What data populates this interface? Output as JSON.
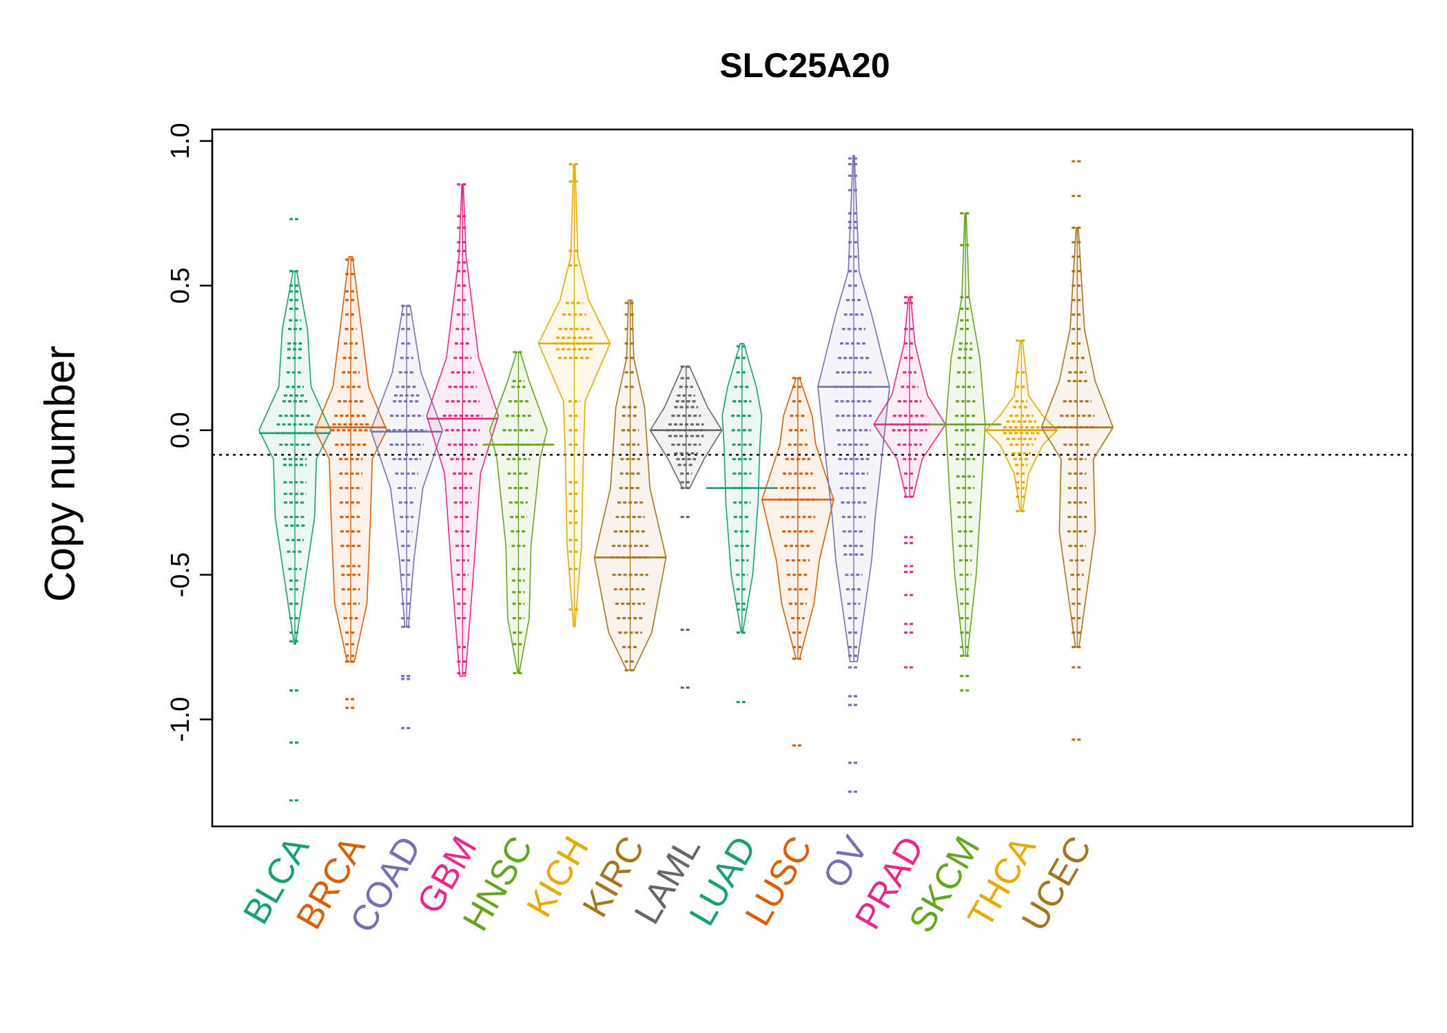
{
  "chart_data": {
    "type": "beanplot",
    "title": "SLC25A20",
    "ylabel": "Copy number",
    "xlabel": "",
    "ylim": [
      -1.37,
      1.04
    ],
    "yticks": [
      -1.0,
      -0.5,
      0.0,
      0.5,
      1.0
    ],
    "ytick_labels": [
      "-1.0",
      "-0.5",
      "0.0",
      "0.5",
      "1.0"
    ],
    "reference_line": -0.085,
    "grid": false,
    "categories": [
      "BLCA",
      "BRCA",
      "COAD",
      "GBM",
      "HNSC",
      "KICH",
      "KIRC",
      "LAML",
      "LUAD",
      "LUSC",
      "OV",
      "PRAD",
      "SKCM",
      "THCA",
      "UCEC"
    ],
    "colors": [
      "#1b9e77",
      "#d95f02",
      "#7570b3",
      "#e7298a",
      "#66a61e",
      "#e6ab02",
      "#a6761d",
      "#666666",
      "#1b9e77",
      "#d95f02",
      "#7570b3",
      "#e7298a",
      "#66a61e",
      "#e6ab02",
      "#a6761d"
    ],
    "series": [
      {
        "name": "BLCA",
        "median": -0.01,
        "density": [
          [
            -0.74,
            0.02
          ],
          [
            -0.55,
            0.25
          ],
          [
            -0.3,
            0.55
          ],
          [
            -0.1,
            0.6
          ],
          [
            0.0,
            1.0
          ],
          [
            0.15,
            0.45
          ],
          [
            0.35,
            0.35
          ],
          [
            0.55,
            0.05
          ]
        ],
        "points": [
          0.73,
          0.55,
          0.5,
          0.48,
          0.45,
          0.42,
          0.38,
          0.35,
          0.3,
          0.28,
          0.25,
          0.2,
          0.15,
          0.12,
          0.1,
          0.05,
          0.02,
          -0.01,
          -0.05,
          -0.1,
          -0.12,
          -0.18,
          -0.22,
          -0.25,
          -0.3,
          -0.33,
          -0.38,
          -0.42,
          -0.48,
          -0.52,
          -0.55,
          -0.6,
          -0.65,
          -0.7,
          -0.73,
          -0.9,
          -1.08,
          -1.28
        ]
      },
      {
        "name": "BRCA",
        "median": 0.01,
        "density": [
          [
            -0.8,
            0.1
          ],
          [
            -0.6,
            0.45
          ],
          [
            -0.3,
            0.55
          ],
          [
            -0.1,
            0.6
          ],
          [
            0.0,
            1.0
          ],
          [
            0.15,
            0.5
          ],
          [
            0.35,
            0.3
          ],
          [
            0.6,
            0.05
          ]
        ],
        "points": [
          0.59,
          0.54,
          0.48,
          0.45,
          0.4,
          0.35,
          0.3,
          0.25,
          0.2,
          0.15,
          0.1,
          0.05,
          0.02,
          0.0,
          -0.05,
          -0.1,
          -0.15,
          -0.2,
          -0.25,
          -0.3,
          -0.35,
          -0.4,
          -0.47,
          -0.5,
          -0.55,
          -0.6,
          -0.65,
          -0.7,
          -0.74,
          -0.78,
          -0.8,
          -0.93,
          -0.96
        ]
      },
      {
        "name": "COAD",
        "median": -0.005,
        "density": [
          [
            -0.68,
            0.05
          ],
          [
            -0.45,
            0.2
          ],
          [
            -0.2,
            0.45
          ],
          [
            0.0,
            1.0
          ],
          [
            0.2,
            0.4
          ],
          [
            0.43,
            0.1
          ]
        ],
        "points": [
          0.43,
          0.4,
          0.35,
          0.3,
          0.25,
          0.2,
          0.15,
          0.12,
          0.1,
          0.05,
          0.0,
          -0.05,
          -0.1,
          -0.15,
          -0.2,
          -0.25,
          -0.3,
          -0.35,
          -0.4,
          -0.45,
          -0.5,
          -0.55,
          -0.6,
          -0.65,
          -0.68,
          -0.85,
          -0.86,
          -1.03
        ]
      },
      {
        "name": "GBM",
        "median": 0.04,
        "density": [
          [
            -0.85,
            0.08
          ],
          [
            -0.5,
            0.3
          ],
          [
            -0.15,
            0.5
          ],
          [
            0.05,
            1.0
          ],
          [
            0.25,
            0.45
          ],
          [
            0.6,
            0.1
          ],
          [
            0.85,
            0.02
          ]
        ],
        "points": [
          0.85,
          0.74,
          0.7,
          0.65,
          0.62,
          0.58,
          0.55,
          0.5,
          0.45,
          0.4,
          0.35,
          0.3,
          0.25,
          0.2,
          0.15,
          0.1,
          0.05,
          0.0,
          -0.05,
          -0.1,
          -0.15,
          -0.2,
          -0.25,
          -0.3,
          -0.35,
          -0.4,
          -0.45,
          -0.5,
          -0.55,
          -0.6,
          -0.65,
          -0.75,
          -0.8,
          -0.84
        ]
      },
      {
        "name": "HNSC",
        "median": -0.05,
        "density": [
          [
            -0.84,
            0.02
          ],
          [
            -0.65,
            0.3
          ],
          [
            -0.4,
            0.35
          ],
          [
            -0.1,
            0.6
          ],
          [
            0.0,
            0.8
          ],
          [
            0.17,
            0.3
          ],
          [
            0.27,
            0.05
          ]
        ],
        "points": [
          0.27,
          0.17,
          0.15,
          0.1,
          0.05,
          0.0,
          -0.05,
          -0.1,
          -0.15,
          -0.2,
          -0.25,
          -0.3,
          -0.35,
          -0.4,
          -0.48,
          -0.52,
          -0.56,
          -0.6,
          -0.65,
          -0.7,
          -0.74,
          -0.84
        ]
      },
      {
        "name": "KICH",
        "median": 0.3,
        "density": [
          [
            -0.68,
            0.02
          ],
          [
            -0.4,
            0.2
          ],
          [
            -0.1,
            0.25
          ],
          [
            0.1,
            0.3
          ],
          [
            0.3,
            1.0
          ],
          [
            0.45,
            0.4
          ],
          [
            0.6,
            0.1
          ],
          [
            0.92,
            0.02
          ]
        ],
        "points": [
          0.92,
          0.86,
          0.62,
          0.57,
          0.44,
          0.4,
          0.35,
          0.32,
          0.3,
          0.28,
          0.25,
          0.1,
          0.05,
          0.0,
          -0.05,
          -0.18,
          -0.22,
          -0.28,
          -0.32,
          -0.38,
          -0.42,
          -0.48,
          -0.62
        ]
      },
      {
        "name": "KIRC",
        "median": -0.44,
        "density": [
          [
            -0.83,
            0.1
          ],
          [
            -0.7,
            0.6
          ],
          [
            -0.44,
            1.0
          ],
          [
            -0.2,
            0.55
          ],
          [
            0.08,
            0.4
          ],
          [
            0.25,
            0.1
          ],
          [
            0.45,
            0.05
          ]
        ],
        "points": [
          0.44,
          0.4,
          0.35,
          0.3,
          0.25,
          0.2,
          0.15,
          0.08,
          0.05,
          0.0,
          -0.05,
          -0.1,
          -0.15,
          -0.2,
          -0.25,
          -0.3,
          -0.35,
          -0.4,
          -0.44,
          -0.5,
          -0.55,
          -0.6,
          -0.65,
          -0.7,
          -0.75,
          -0.8,
          -0.83
        ]
      },
      {
        "name": "LAML",
        "median": 0.0,
        "density": [
          [
            -0.2,
            0.1
          ],
          [
            -0.1,
            0.5
          ],
          [
            0.0,
            1.0
          ],
          [
            0.08,
            0.6
          ],
          [
            0.22,
            0.1
          ]
        ],
        "points": [
          0.22,
          0.18,
          0.15,
          0.12,
          0.1,
          0.08,
          0.05,
          0.02,
          0.0,
          -0.02,
          -0.05,
          -0.08,
          -0.1,
          -0.12,
          -0.15,
          -0.18,
          -0.2,
          -0.3,
          -0.69,
          -0.89
        ]
      },
      {
        "name": "LUAD",
        "median": -0.2,
        "density": [
          [
            -0.7,
            0.02
          ],
          [
            -0.5,
            0.3
          ],
          [
            -0.25,
            0.45
          ],
          [
            -0.05,
            0.5
          ],
          [
            0.05,
            0.55
          ],
          [
            0.15,
            0.4
          ],
          [
            0.3,
            0.05
          ]
        ],
        "points": [
          0.29,
          0.25,
          0.2,
          0.15,
          0.1,
          0.05,
          0.0,
          -0.05,
          -0.1,
          -0.15,
          -0.2,
          -0.25,
          -0.3,
          -0.35,
          -0.4,
          -0.45,
          -0.5,
          -0.55,
          -0.6,
          -0.62,
          -0.7,
          -0.94
        ]
      },
      {
        "name": "LUSC",
        "median": -0.24,
        "density": [
          [
            -0.79,
            0.05
          ],
          [
            -0.6,
            0.45
          ],
          [
            -0.45,
            0.6
          ],
          [
            -0.24,
            1.0
          ],
          [
            -0.05,
            0.5
          ],
          [
            0.05,
            0.4
          ],
          [
            0.18,
            0.05
          ]
        ],
        "points": [
          0.18,
          0.15,
          0.1,
          0.05,
          0.0,
          -0.05,
          -0.1,
          -0.15,
          -0.2,
          -0.24,
          -0.3,
          -0.35,
          -0.4,
          -0.45,
          -0.5,
          -0.55,
          -0.6,
          -0.65,
          -0.7,
          -0.75,
          -0.79,
          -1.09
        ]
      },
      {
        "name": "OV",
        "median": 0.15,
        "density": [
          [
            -0.8,
            0.1
          ],
          [
            -0.45,
            0.5
          ],
          [
            -0.3,
            0.6
          ],
          [
            0.15,
            1.0
          ],
          [
            0.4,
            0.5
          ],
          [
            0.55,
            0.15
          ],
          [
            0.95,
            0.02
          ]
        ],
        "points": [
          0.94,
          0.92,
          0.88,
          0.83,
          0.75,
          0.72,
          0.7,
          0.65,
          0.6,
          0.55,
          0.5,
          0.45,
          0.4,
          0.35,
          0.3,
          0.25,
          0.2,
          0.15,
          0.1,
          0.05,
          0.0,
          -0.05,
          -0.1,
          -0.15,
          -0.2,
          -0.25,
          -0.3,
          -0.35,
          -0.4,
          -0.43,
          -0.5,
          -0.55,
          -0.6,
          -0.65,
          -0.7,
          -0.75,
          -0.78,
          -0.82,
          -0.92,
          -0.95,
          -1.15,
          -1.25
        ]
      },
      {
        "name": "PRAD",
        "median": 0.02,
        "density": [
          [
            -0.23,
            0.1
          ],
          [
            -0.1,
            0.35
          ],
          [
            0.02,
            1.0
          ],
          [
            0.12,
            0.5
          ],
          [
            0.3,
            0.15
          ],
          [
            0.46,
            0.03
          ]
        ],
        "points": [
          0.46,
          0.44,
          0.35,
          0.3,
          0.25,
          0.2,
          0.15,
          0.1,
          0.05,
          0.02,
          0.0,
          -0.05,
          -0.1,
          -0.15,
          -0.2,
          -0.23,
          -0.37,
          -0.39,
          -0.47,
          -0.49,
          -0.57,
          -0.67,
          -0.7,
          -0.82
        ]
      },
      {
        "name": "SKCM",
        "median": 0.02,
        "density": [
          [
            -0.78,
            0.05
          ],
          [
            -0.5,
            0.3
          ],
          [
            -0.2,
            0.45
          ],
          [
            0.02,
            0.55
          ],
          [
            0.25,
            0.4
          ],
          [
            0.46,
            0.1
          ],
          [
            0.75,
            0.02
          ]
        ],
        "points": [
          0.75,
          0.64,
          0.46,
          0.42,
          0.38,
          0.35,
          0.3,
          0.28,
          0.25,
          0.2,
          0.15,
          0.1,
          0.05,
          0.02,
          0.0,
          -0.05,
          -0.1,
          -0.16,
          -0.2,
          -0.25,
          -0.3,
          -0.35,
          -0.4,
          -0.45,
          -0.5,
          -0.55,
          -0.6,
          -0.65,
          -0.7,
          -0.75,
          -0.78,
          -0.85,
          -0.9
        ]
      },
      {
        "name": "THCA",
        "median": 0.0,
        "density": [
          [
            -0.28,
            0.03
          ],
          [
            -0.15,
            0.2
          ],
          [
            -0.05,
            0.6
          ],
          [
            0.0,
            1.0
          ],
          [
            0.05,
            0.6
          ],
          [
            0.12,
            0.2
          ],
          [
            0.31,
            0.03
          ]
        ],
        "points": [
          0.31,
          0.2,
          0.15,
          0.1,
          0.08,
          0.05,
          0.03,
          0.01,
          0.0,
          -0.01,
          -0.03,
          -0.05,
          -0.08,
          -0.1,
          -0.12,
          -0.15,
          -0.18,
          -0.2,
          -0.23,
          -0.28
        ]
      },
      {
        "name": "UCEC",
        "median": 0.01,
        "density": [
          [
            -0.75,
            0.05
          ],
          [
            -0.35,
            0.5
          ],
          [
            -0.1,
            0.45
          ],
          [
            0.01,
            1.0
          ],
          [
            0.17,
            0.5
          ],
          [
            0.35,
            0.2
          ],
          [
            0.7,
            0.03
          ]
        ],
        "points": [
          0.93,
          0.81,
          0.7,
          0.65,
          0.6,
          0.55,
          0.5,
          0.45,
          0.4,
          0.35,
          0.3,
          0.25,
          0.2,
          0.17,
          0.1,
          0.05,
          0.01,
          -0.05,
          -0.1,
          -0.15,
          -0.2,
          -0.25,
          -0.3,
          -0.35,
          -0.4,
          -0.45,
          -0.5,
          -0.55,
          -0.6,
          -0.65,
          -0.7,
          -0.75,
          -0.82,
          -1.07
        ]
      }
    ]
  }
}
